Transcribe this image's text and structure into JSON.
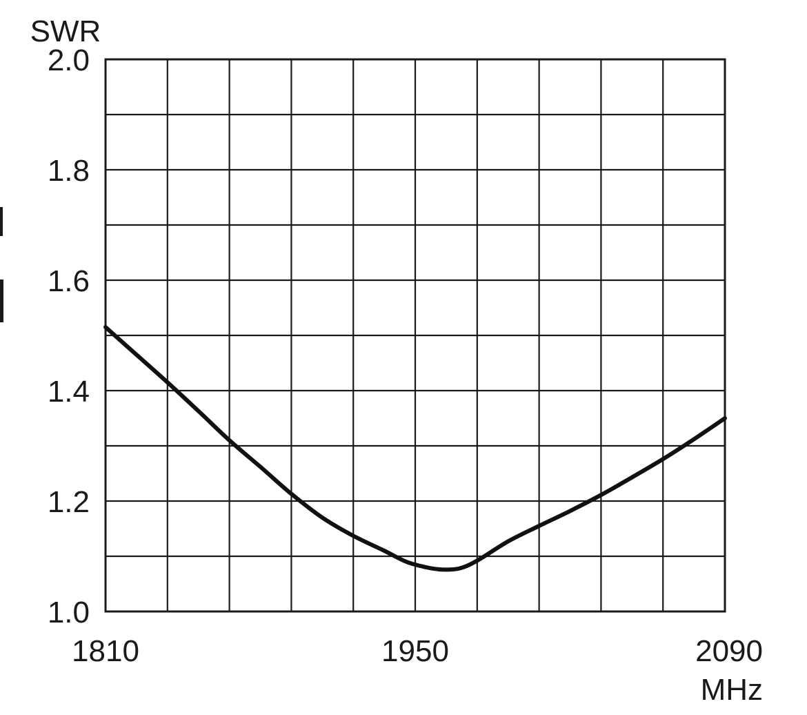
{
  "chart_data": {
    "type": "line",
    "title": "",
    "ylabel": "SWR",
    "xlabel": "MHz",
    "xlim": [
      1810,
      2090
    ],
    "ylim": [
      1.0,
      2.0
    ],
    "x_ticks": [
      1810,
      1950,
      2090
    ],
    "y_ticks": [
      "1.0",
      "1.2",
      "1.4",
      "1.6",
      "1.8",
      "2.0"
    ],
    "x_grid_step": 28,
    "y_grid_step": 0.1,
    "grid": true,
    "legend": "none",
    "series": [
      {
        "color": "#111111",
        "x": [
          1810,
          1824,
          1838,
          1852,
          1866,
          1880,
          1894,
          1908,
          1922,
          1936,
          1946,
          1955,
          1962,
          1970,
          1978,
          1992,
          2006,
          2020,
          2034,
          2048,
          2062,
          2076,
          2090
        ],
        "y": [
          1.515,
          1.465,
          1.415,
          1.363,
          1.31,
          1.262,
          1.213,
          1.17,
          1.137,
          1.11,
          1.09,
          1.08,
          1.076,
          1.078,
          1.092,
          1.127,
          1.155,
          1.182,
          1.211,
          1.243,
          1.276,
          1.312,
          1.35
        ]
      }
    ]
  }
}
